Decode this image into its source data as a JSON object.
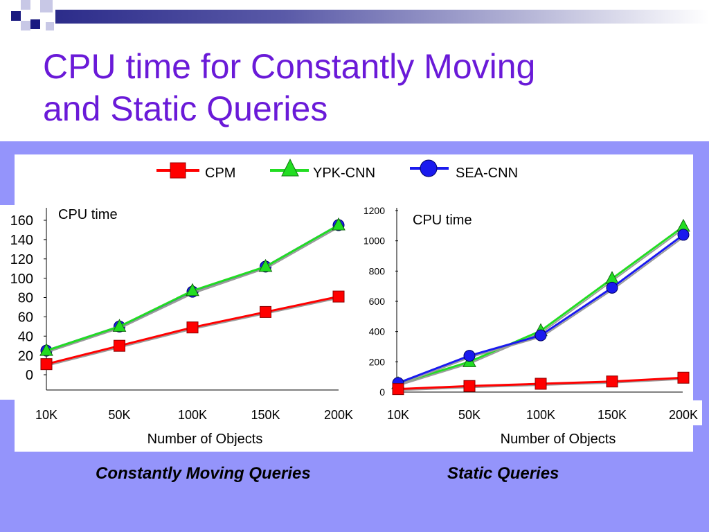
{
  "slide": {
    "title_line1": "CPU time for Constantly Moving",
    "title_line2": "and Static Queries",
    "caption_left": "Constantly Moving Queries",
    "caption_right": "Static Queries"
  },
  "colors": {
    "title": "#6a1ad8",
    "band": "#9494fb",
    "CPM": "#ff0000",
    "YPK-CNN": "#22dd22",
    "SEA-CNN": "#1a1aee"
  },
  "legend": [
    {
      "name": "CPM",
      "marker": "square"
    },
    {
      "name": "YPK-CNN",
      "marker": "triangle"
    },
    {
      "name": "SEA-CNN",
      "marker": "circle"
    }
  ],
  "chart_data": [
    {
      "type": "line",
      "title": "",
      "annotation": "CPU time",
      "xlabel": "Number of Objects",
      "ylabel": "",
      "categories": [
        "10K",
        "50K",
        "100K",
        "150K",
        "200K"
      ],
      "ylim": [
        0,
        160
      ],
      "yticks": [
        "0",
        "20",
        "40",
        "60",
        "80",
        "100",
        "120",
        "140",
        "160"
      ],
      "series": [
        {
          "name": "CPM",
          "marker": "square",
          "values": [
            11,
            30,
            49,
            65,
            81
          ]
        },
        {
          "name": "YPK-CNN",
          "marker": "triangle",
          "values": [
            25,
            50,
            87,
            112,
            155
          ]
        },
        {
          "name": "SEA-CNN",
          "marker": "circle",
          "values": [
            25,
            50,
            86,
            112,
            155
          ]
        }
      ],
      "caption": "Constantly Moving Queries"
    },
    {
      "type": "line",
      "title": "",
      "annotation": "CPU time",
      "xlabel": "Number of Objects",
      "ylabel": "",
      "categories": [
        "10K",
        "50K",
        "100K",
        "150K",
        "200K"
      ],
      "ylim": [
        0,
        1200
      ],
      "yticks": [
        "0",
        "200",
        "400",
        "600",
        "800",
        "1000",
        "1200"
      ],
      "series": [
        {
          "name": "CPM",
          "marker": "square",
          "values": [
            20,
            40,
            55,
            70,
            95
          ]
        },
        {
          "name": "YPK-CNN",
          "marker": "triangle",
          "values": [
            55,
            200,
            405,
            750,
            1095
          ]
        },
        {
          "name": "SEA-CNN",
          "marker": "circle",
          "values": [
            60,
            240,
            375,
            690,
            1040
          ]
        }
      ],
      "caption": "Static Queries"
    }
  ]
}
